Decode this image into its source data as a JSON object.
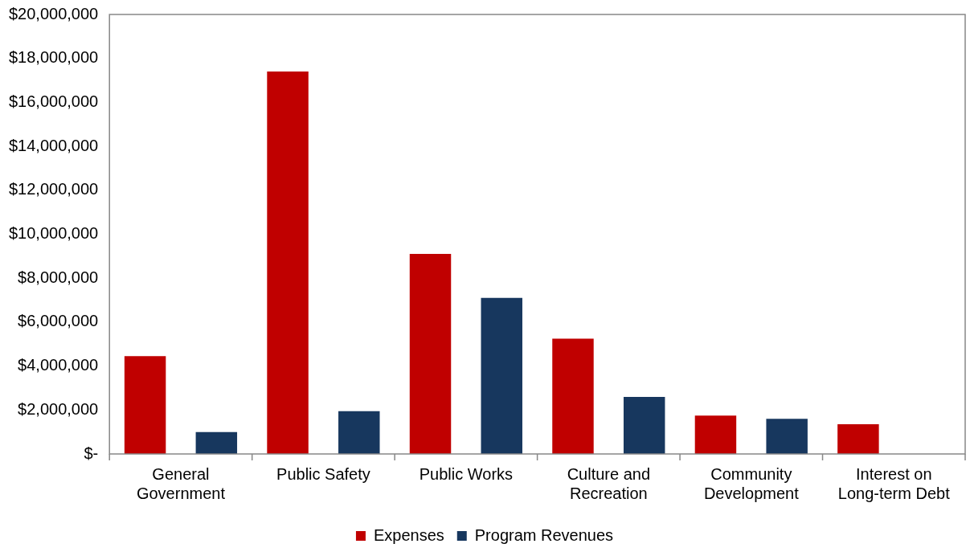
{
  "chart_data": {
    "type": "bar",
    "categories": [
      "General Government",
      "Public Safety",
      "Public Works",
      "Culture and Recreation",
      "Community Development",
      "Interest on Long-term Debt"
    ],
    "series": [
      {
        "name": "Expenses",
        "color": "#c00000",
        "values": [
          4450000,
          17400000,
          9100000,
          5250000,
          1750000,
          1350000
        ]
      },
      {
        "name": "Program Revenues",
        "color": "#17375e",
        "values": [
          1000000,
          1950000,
          7100000,
          2600000,
          1600000,
          0
        ]
      }
    ],
    "ylim": [
      0,
      20000000
    ],
    "yticks": [
      {
        "value": 0,
        "label": "$-"
      },
      {
        "value": 2000000,
        "label": "$2,000,000"
      },
      {
        "value": 4000000,
        "label": "$4,000,000"
      },
      {
        "value": 6000000,
        "label": "$6,000,000"
      },
      {
        "value": 8000000,
        "label": "$8,000,000"
      },
      {
        "value": 10000000,
        "label": "$10,000,000"
      },
      {
        "value": 12000000,
        "label": "$12,000,000"
      },
      {
        "value": 14000000,
        "label": "$14,000,000"
      },
      {
        "value": 16000000,
        "label": "$16,000,000"
      },
      {
        "value": 18000000,
        "label": "$18,000,000"
      },
      {
        "value": 20000000,
        "label": "$20,000,000"
      }
    ],
    "grid": false,
    "legend": "bottom"
  }
}
